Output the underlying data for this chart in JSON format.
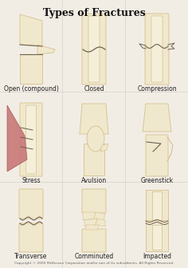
{
  "title": "Types of Fractures",
  "title_fontsize": 9,
  "bg": "#f2ede4",
  "bone_fill": "#f0e8cc",
  "bone_outer": "#d4c090",
  "bone_inner_fill": "#f5efda",
  "bone_inner_edge": "#c8b080",
  "crack_color": "#706050",
  "muscle_fill": "#c87878",
  "muscle_edge": "#a05050",
  "copyright": "Copyright © 2005 McKesson Corporation and/or one of its subsidiaries. All Rights Reserved.",
  "labels": [
    "Open (compound)",
    "Closed",
    "Compression",
    "Stress",
    "Avulsion",
    "Greenstick",
    "Transverse",
    "Comminuted",
    "Impacted"
  ],
  "label_fontsize": 5.5,
  "copyright_fontsize": 3.2
}
